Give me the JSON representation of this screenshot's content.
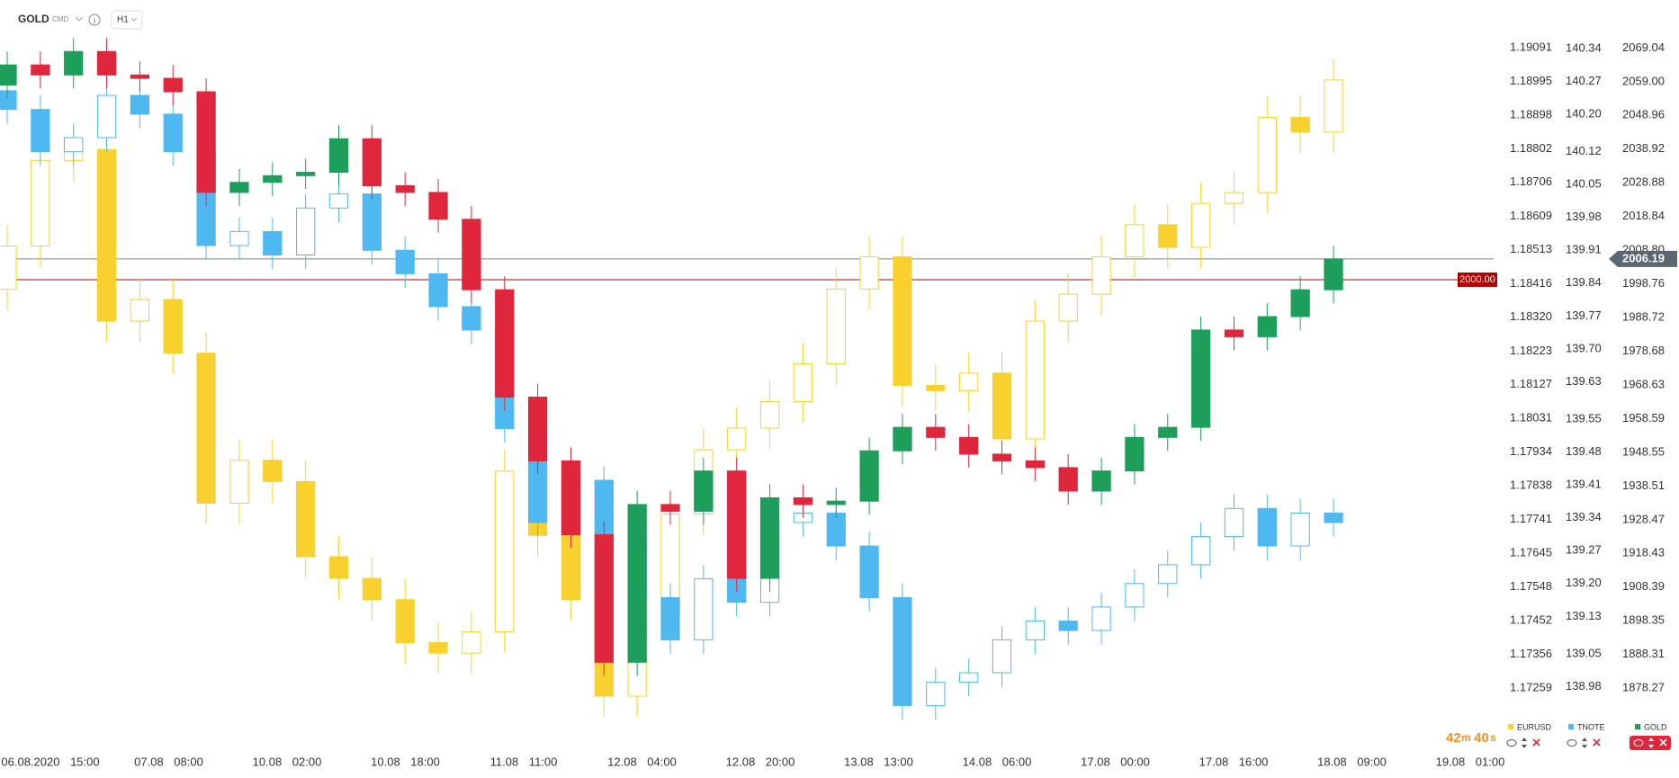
{
  "header": {
    "symbol": "GOLD",
    "type": "CMD",
    "interval": "H1"
  },
  "chart_data": {
    "type": "candlestick",
    "x_labels": [
      "06.08.2020 15:00",
      "07.08 08:00",
      "10.08 02:00",
      "10.08 18:00",
      "11.08 11:00",
      "12.08 04:00",
      "12.08 20:00",
      "13.08 13:00",
      "14.08 06:00",
      "17.08 00:00",
      "17.08 16:00",
      "18.08 09:00",
      "19.08 01:00"
    ],
    "series": [
      {
        "name": "EURUSD",
        "color": "#f9d12e",
        "hollow_up": true,
        "ylim": [
          1.17115,
          1.19143
        ],
        "yticks": [
          1.19091,
          1.18995,
          1.18898,
          1.18802,
          1.18706,
          1.18609,
          1.18513,
          1.18416,
          {
            "value": 1.1832,
            "label": "1.18320"
          },
          1.18223,
          1.18127,
          1.18031,
          1.17934,
          1.17838,
          1.17741,
          1.17645,
          1.17548,
          1.17452,
          1.17356,
          1.17259
        ],
        "open": [
          1.184,
          1.18524,
          1.18769,
          1.188,
          1.18309,
          1.18371,
          1.18217,
          1.17788,
          1.17911,
          1.1785,
          1.17635,
          1.17573,
          1.17512,
          1.17389,
          1.17359,
          1.1742,
          1.1788,
          1.17696,
          1.17512,
          1.17236,
          1.17481,
          1.17757,
          1.17941,
          1.18003,
          1.18079,
          1.18187,
          1.18401,
          1.18493,
          1.18125,
          1.1811,
          1.1816,
          1.17972,
          1.18309,
          1.18386,
          1.18493,
          1.18585,
          1.1852,
          1.18646,
          1.18677,
          1.18892,
          1.1885
        ],
        "high": [
          1.18584,
          1.18829,
          1.1886,
          1.1886,
          1.18431,
          1.18431,
          1.18277,
          1.17971,
          1.17971,
          1.1791,
          1.17695,
          1.17633,
          1.17572,
          1.17449,
          1.1748,
          1.1794,
          1.1794,
          1.17756,
          1.17572,
          1.17541,
          1.17817,
          1.18001,
          1.18063,
          1.18139,
          1.18247,
          1.18461,
          1.18553,
          1.18553,
          1.18185,
          1.1822,
          1.1822,
          1.18369,
          1.18446,
          1.18553,
          1.18645,
          1.18645,
          1.18706,
          1.18737,
          1.18952,
          1.18952,
          1.19059
        ],
        "low": [
          1.1834,
          1.18464,
          1.18709,
          1.18249,
          1.18249,
          1.18157,
          1.17728,
          1.17728,
          1.1779,
          1.17575,
          1.17513,
          1.17452,
          1.17329,
          1.17299,
          1.17299,
          1.1736,
          1.17636,
          1.17452,
          1.17176,
          1.17176,
          1.17421,
          1.17697,
          1.17881,
          1.17943,
          1.18019,
          1.18127,
          1.18341,
          1.18065,
          1.1805,
          1.1805,
          1.17912,
          1.17912,
          1.18249,
          1.18326,
          1.18433,
          1.1846,
          1.1846,
          1.18586,
          1.18617,
          1.1879,
          1.1879
        ],
        "close": [
          1.18524,
          1.18769,
          1.188,
          1.18309,
          1.18371,
          1.18217,
          1.17788,
          1.17911,
          1.1785,
          1.17635,
          1.17573,
          1.17512,
          1.17389,
          1.17359,
          1.1742,
          1.1788,
          1.17696,
          1.17512,
          1.17236,
          1.17481,
          1.17757,
          1.17941,
          1.18003,
          1.18079,
          1.18187,
          1.18401,
          1.18493,
          1.18125,
          1.1811,
          1.1816,
          1.17972,
          1.18309,
          1.18386,
          1.18493,
          1.18585,
          1.1852,
          1.18646,
          1.18677,
          1.18892,
          1.1885,
          1.18999
        ]
      },
      {
        "name": "TNOTE",
        "color": "#4fb8f0",
        "hollow_up": true,
        "ylim": [
          138.87,
          140.38
        ],
        "yticks": [
          140.34,
          140.27,
          {
            "value": 140.2,
            "label": "140.20"
          },
          140.12,
          140.05,
          139.98,
          139.91,
          139.84,
          139.77,
          {
            "value": 139.7,
            "label": "139.70"
          },
          139.63,
          139.55,
          139.48,
          139.41,
          139.34,
          139.27,
          {
            "value": 139.2,
            "label": "139.20"
          },
          139.13,
          139.05,
          138.98
        ],
        "open": [
          140.25,
          140.21,
          140.12,
          140.15,
          140.24,
          140.2,
          140.12,
          139.92,
          139.95,
          139.9,
          140.0,
          140.03,
          139.91,
          139.86,
          139.79,
          139.74,
          139.53,
          139.33,
          139.42,
          139.3,
          139.17,
          139.08,
          139.21,
          139.16,
          139.33,
          139.35,
          139.28,
          139.17,
          138.94,
          138.99,
          139.01,
          139.08,
          139.12,
          139.1,
          139.15,
          139.2,
          139.24,
          139.3,
          139.36,
          139.28,
          139.35
        ],
        "high": [
          140.28,
          140.24,
          140.18,
          140.27,
          140.27,
          140.23,
          140.15,
          139.98,
          139.98,
          140.03,
          140.06,
          140.06,
          139.94,
          139.89,
          139.82,
          139.77,
          139.56,
          139.45,
          139.45,
          139.33,
          139.2,
          139.24,
          139.24,
          139.36,
          139.38,
          139.38,
          139.31,
          139.2,
          139.02,
          139.04,
          139.11,
          139.15,
          139.15,
          139.18,
          139.23,
          139.27,
          139.33,
          139.39,
          139.39,
          139.38,
          139.38
        ],
        "low": [
          140.18,
          140.09,
          140.09,
          140.12,
          140.17,
          140.09,
          139.89,
          139.89,
          139.87,
          139.87,
          139.97,
          139.88,
          139.83,
          139.76,
          139.71,
          139.5,
          139.3,
          139.3,
          139.27,
          139.14,
          139.05,
          139.05,
          139.13,
          139.13,
          139.3,
          139.25,
          139.14,
          138.91,
          138.91,
          138.96,
          138.98,
          139.05,
          139.07,
          139.07,
          139.12,
          139.17,
          139.21,
          139.27,
          139.25,
          139.25,
          139.3
        ],
        "close": [
          140.21,
          140.12,
          140.15,
          140.24,
          140.2,
          140.12,
          139.92,
          139.95,
          139.9,
          140.0,
          140.03,
          139.91,
          139.86,
          139.79,
          139.74,
          139.53,
          139.33,
          139.42,
          139.3,
          139.17,
          139.08,
          139.21,
          139.16,
          139.33,
          139.35,
          139.28,
          139.17,
          138.94,
          138.99,
          139.01,
          139.08,
          139.12,
          139.1,
          139.15,
          139.2,
          139.24,
          139.3,
          139.36,
          139.28,
          139.35,
          139.33
        ]
      },
      {
        "name": "GOLD",
        "color": "#1d9f5b",
        "down_color": "#e0263c",
        "hollow_up": false,
        "ylim": [
          1863.3,
          2074.5
        ],
        "yticks": [
          2069.04,
          {
            "value": 2059,
            "label": "2059.00"
          },
          2048.96,
          2038.92,
          2028.88,
          2018.84,
          {
            "value": 2008.8,
            "label": "2008.80"
          },
          1998.76,
          1988.72,
          1978.68,
          1968.63,
          1958.59,
          1948.55,
          1938.51,
          1928.47,
          1918.43,
          1908.39,
          1898.35,
          1888.31,
          1878.27
        ],
        "open": [
          2058,
          2064,
          2061,
          2068,
          2061,
          2060,
          2056,
          2026,
          2029,
          2031,
          2032,
          2042,
          2028,
          2026,
          2018,
          1997,
          1965,
          1946,
          1924,
          1886,
          1933,
          1931,
          1943,
          1911,
          1935,
          1933,
          1934,
          1949,
          1956,
          1953,
          1948,
          1946,
          1944,
          1937,
          1943,
          1953,
          1956,
          1985,
          1983,
          1989,
          1997
        ],
        "high": [
          2068,
          2068,
          2072,
          2072,
          2065,
          2064,
          2060,
          2033,
          2035,
          2036,
          2046,
          2046,
          2032,
          2030,
          2022,
          2001,
          1969,
          1950,
          1928,
          1937,
          1937,
          1947,
          1947,
          1939,
          1939,
          1938,
          1953,
          1960,
          1960,
          1957,
          1952,
          1950,
          1948,
          1947,
          1957,
          1960,
          1989,
          1989,
          1993,
          2001,
          2010
        ],
        "low": [
          2054,
          2057,
          2057,
          2057,
          2056,
          2052,
          2022,
          2022,
          2025,
          2027,
          2028,
          2024,
          2022,
          2014,
          1993,
          1961,
          1942,
          1920,
          1882,
          1882,
          1927,
          1927,
          1907,
          1907,
          1929,
          1929,
          1930,
          1945,
          1949,
          1944,
          1942,
          1940,
          1933,
          1933,
          1939,
          1949,
          1952,
          1979,
          1979,
          1985,
          1993
        ],
        "close": [
          2064,
          2061,
          2068,
          2061,
          2060,
          2056,
          2026,
          2029,
          2031,
          2032,
          2042,
          2028,
          2026,
          2018,
          1997,
          1965,
          1946,
          1924,
          1886,
          1933,
          1931,
          1943,
          1911,
          1935,
          1933,
          1934,
          1949,
          1956,
          1953,
          1948,
          1946,
          1944,
          1937,
          1943,
          1953,
          1956,
          1985,
          1983,
          1989,
          1997,
          2006.19
        ]
      }
    ],
    "price_line": {
      "value": 2000,
      "label": "2000.00",
      "color": "#b30000"
    },
    "timer": [
      "42",
      "m",
      "40",
      "s"
    ]
  }
}
